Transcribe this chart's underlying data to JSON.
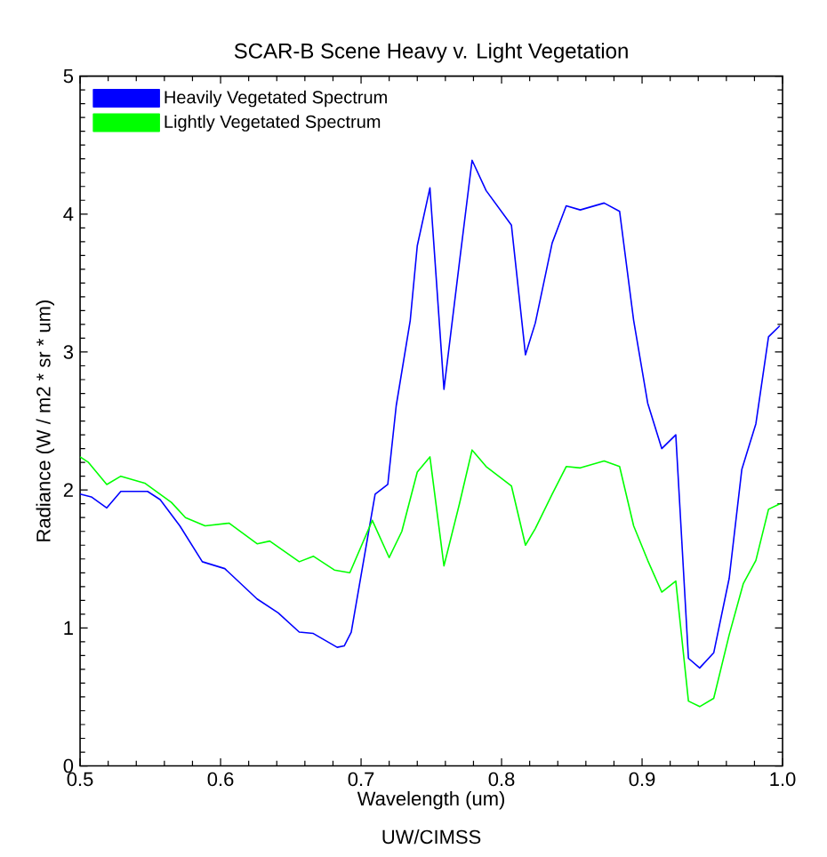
{
  "chart_data": {
    "type": "line",
    "title": "SCAR-B Scene Heavy v. Light Vegetation",
    "xlabel": "Wavelength (um)",
    "ylabel": "Radiance (W / m2 * sr * um)",
    "annotations": [
      "UW/CIMSS"
    ],
    "xlim": [
      0.5,
      1.0
    ],
    "ylim": [
      0,
      5
    ],
    "xticks": [
      0.5,
      0.6,
      0.7,
      0.8,
      0.9,
      {
        "value": 1,
        "label": "1.0"
      }
    ],
    "yticks": [
      0,
      1,
      2,
      3,
      4,
      5
    ],
    "grid": false,
    "legend": "top left",
    "marker": "none",
    "line_style": "solid",
    "series": [
      {
        "name": "Heavily Vegetated Spectrum",
        "color": "#0000ff",
        "x": [
          0.5,
          0.508,
          0.519,
          0.529,
          0.548,
          0.557,
          0.571,
          0.587,
          0.603,
          0.626,
          0.641,
          0.656,
          0.666,
          0.683,
          0.688,
          0.693,
          0.71,
          0.719,
          0.725,
          0.735,
          0.74,
          0.749,
          0.759,
          0.77,
          0.779,
          0.789,
          0.807,
          0.817,
          0.824,
          0.836,
          0.846,
          0.856,
          0.873,
          0.884,
          0.894,
          0.904,
          0.914,
          0.924,
          0.933,
          0.941,
          0.951,
          0.962,
          0.971,
          0.981,
          0.99,
          0.998
        ],
        "values": [
          1.97,
          1.95,
          1.87,
          1.99,
          1.99,
          1.93,
          1.74,
          1.48,
          1.43,
          1.21,
          1.11,
          0.97,
          0.96,
          0.86,
          0.87,
          0.97,
          1.97,
          2.04,
          2.61,
          3.23,
          3.77,
          4.19,
          2.73,
          3.65,
          4.39,
          4.17,
          3.92,
          2.98,
          3.21,
          3.79,
          4.06,
          4.03,
          4.08,
          4.02,
          3.23,
          2.63,
          2.3,
          2.4,
          0.78,
          0.71,
          0.82,
          1.36,
          2.15,
          2.48,
          3.11,
          3.19
        ]
      },
      {
        "name": "Lightly Vegetated Spectrum",
        "color": "#00ff00",
        "x": [
          0.5,
          0.506,
          0.519,
          0.529,
          0.546,
          0.565,
          0.575,
          0.589,
          0.606,
          0.626,
          0.635,
          0.656,
          0.666,
          0.681,
          0.692,
          0.708,
          0.72,
          0.729,
          0.74,
          0.749,
          0.759,
          0.77,
          0.779,
          0.789,
          0.807,
          0.817,
          0.824,
          0.836,
          0.846,
          0.856,
          0.873,
          0.884,
          0.894,
          0.904,
          0.914,
          0.924,
          0.933,
          0.941,
          0.951,
          0.962,
          0.972,
          0.981,
          0.99,
          0.998
        ],
        "values": [
          2.24,
          2.2,
          2.04,
          2.1,
          2.05,
          1.91,
          1.8,
          1.74,
          1.76,
          1.61,
          1.63,
          1.48,
          1.52,
          1.42,
          1.4,
          1.78,
          1.51,
          1.7,
          2.13,
          2.24,
          1.45,
          1.9,
          2.29,
          2.17,
          2.03,
          1.6,
          1.72,
          1.97,
          2.17,
          2.16,
          2.21,
          2.17,
          1.74,
          1.49,
          1.26,
          1.34,
          0.47,
          0.43,
          0.49,
          0.95,
          1.32,
          1.49,
          1.86,
          1.9
        ]
      }
    ]
  }
}
